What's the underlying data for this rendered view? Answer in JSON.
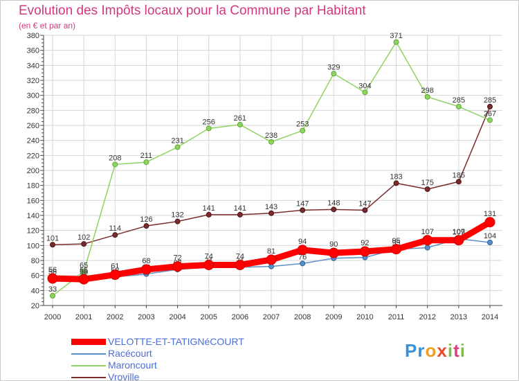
{
  "header": {
    "title": "Evolution des Impôts locaux pour la Commune par Habitant",
    "subtitle": "(en € et par an)"
  },
  "logo": {
    "text": "Proxiti"
  },
  "chart_data": {
    "type": "line",
    "title": "Evolution des Impôts locaux pour la Commune par Habitant",
    "subtitle": "(en € et par an)",
    "xlabel": "",
    "ylabel": "",
    "x": [
      "2000",
      "2001",
      "2002",
      "2003",
      "2004",
      "2005",
      "2006",
      "2007",
      "2008",
      "2009",
      "2010",
      "2011",
      "2012",
      "2013",
      "2014"
    ],
    "ylim": [
      20,
      380
    ],
    "yticks": [
      20,
      40,
      60,
      80,
      100,
      120,
      140,
      160,
      180,
      200,
      220,
      240,
      260,
      280,
      300,
      320,
      340,
      360,
      380
    ],
    "grid": true,
    "legend_position": "bottom-left",
    "series": [
      {
        "name": "VELOTTE-ET-TATIGNéCOURT",
        "color": "#ff0000",
        "values": [
          56,
          55,
          61,
          68,
          72,
          74,
          74,
          81,
          94,
          90,
          92,
          95,
          107,
          107,
          131
        ]
      },
      {
        "name": "Racécourt",
        "color": "#5b8fc7",
        "values": [
          56,
          56,
          58,
          62,
          68,
          71,
          71,
          72,
          76,
          83,
          84,
          95,
          97,
          109,
          104
        ]
      },
      {
        "name": "Maroncourt",
        "color": "#8fd360",
        "values": [
          33,
          65,
          208,
          211,
          231,
          256,
          261,
          238,
          253,
          329,
          304,
          371,
          298,
          285,
          267
        ]
      },
      {
        "name": "Vroville",
        "color": "#7a2b2b",
        "values": [
          101,
          102,
          114,
          126,
          132,
          141,
          141,
          143,
          147,
          148,
          147,
          183,
          175,
          185,
          285
        ]
      }
    ]
  }
}
